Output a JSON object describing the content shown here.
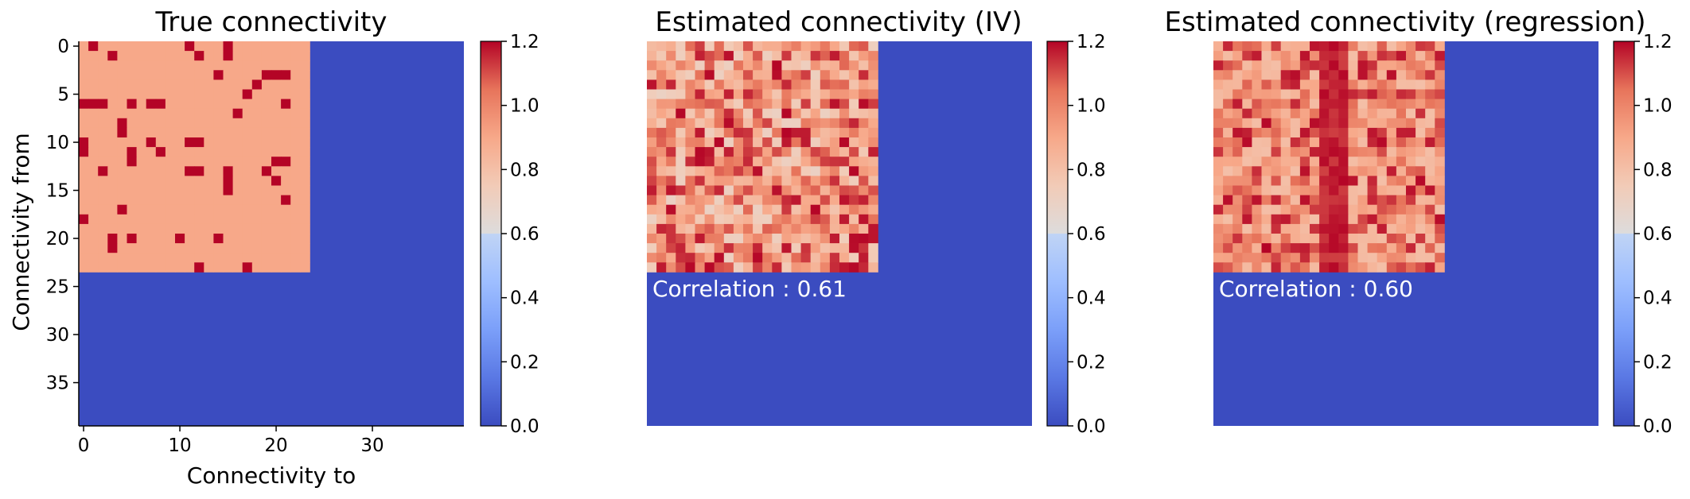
{
  "colors": {
    "low": "#3b4cc0",
    "mid": "#dddddd",
    "high": "#b40426",
    "base_block": "#e8765c",
    "annotation_text": "#ffffff"
  },
  "colormap": "coolwarm",
  "chart_data": [
    {
      "type": "heatmap",
      "title": "True connectivity",
      "xlabel": "Connectivity to",
      "ylabel": "Connectivity from",
      "grid_size": 40,
      "block_size": 24,
      "base_value": 0.9,
      "outside_value": 0.0,
      "high_value": 1.2,
      "high_cells": [
        [
          0,
          1
        ],
        [
          0,
          11
        ],
        [
          0,
          15
        ],
        [
          1,
          3
        ],
        [
          1,
          12
        ],
        [
          1,
          15
        ],
        [
          3,
          14
        ],
        [
          3,
          19
        ],
        [
          3,
          20
        ],
        [
          3,
          21
        ],
        [
          4,
          18
        ],
        [
          5,
          17
        ],
        [
          6,
          0
        ],
        [
          6,
          1
        ],
        [
          6,
          2
        ],
        [
          6,
          5
        ],
        [
          6,
          7
        ],
        [
          6,
          8
        ],
        [
          6,
          21
        ],
        [
          7,
          16
        ],
        [
          8,
          4
        ],
        [
          9,
          4
        ],
        [
          10,
          0
        ],
        [
          10,
          7
        ],
        [
          10,
          11
        ],
        [
          10,
          12
        ],
        [
          11,
          0
        ],
        [
          11,
          5
        ],
        [
          11,
          8
        ],
        [
          12,
          5
        ],
        [
          12,
          20
        ],
        [
          12,
          21
        ],
        [
          13,
          2
        ],
        [
          13,
          11
        ],
        [
          13,
          12
        ],
        [
          13,
          15
        ],
        [
          13,
          19
        ],
        [
          14,
          15
        ],
        [
          14,
          20
        ],
        [
          15,
          15
        ],
        [
          16,
          21
        ],
        [
          17,
          4
        ],
        [
          18,
          0
        ],
        [
          20,
          3
        ],
        [
          20,
          5
        ],
        [
          20,
          10
        ],
        [
          20,
          14
        ],
        [
          21,
          3
        ],
        [
          23,
          12
        ],
        [
          23,
          17
        ]
      ],
      "colorbar": {
        "min": 0.0,
        "max": 1.2,
        "ticks": [
          "0.0",
          "0.2",
          "0.4",
          "0.6",
          "0.8",
          "1.0",
          "1.2"
        ]
      },
      "x_ticks": [
        "0",
        "10",
        "20",
        "30"
      ],
      "y_ticks": [
        "0",
        "5",
        "10",
        "15",
        "20",
        "25",
        "30",
        "35"
      ],
      "annotation": ""
    },
    {
      "type": "heatmap",
      "title": "Estimated connectivity (IV)",
      "grid_size": 40,
      "block_size": 24,
      "outside_value": 0.0,
      "block_values_note": "noisy estimate, range approx 0.7-1.2",
      "value_range": [
        0.7,
        1.2
      ],
      "seed": 11,
      "colorbar": {
        "min": 0.0,
        "max": 1.2,
        "ticks": [
          "0.0",
          "0.2",
          "0.4",
          "0.6",
          "0.8",
          "1.0",
          "1.2"
        ]
      },
      "annotation": "Correlation : 0.61"
    },
    {
      "type": "heatmap",
      "title": "Estimated connectivity (regression)",
      "grid_size": 40,
      "block_size": 24,
      "outside_value": 0.0,
      "value_range": [
        0.8,
        1.2
      ],
      "bright_columns": [
        11,
        12,
        13
      ],
      "seed": 29,
      "colorbar": {
        "min": 0.0,
        "max": 1.2,
        "ticks": [
          "0.0",
          "0.2",
          "0.4",
          "0.6",
          "0.8",
          "1.0",
          "1.2"
        ]
      },
      "annotation": "Correlation : 0.60"
    }
  ]
}
